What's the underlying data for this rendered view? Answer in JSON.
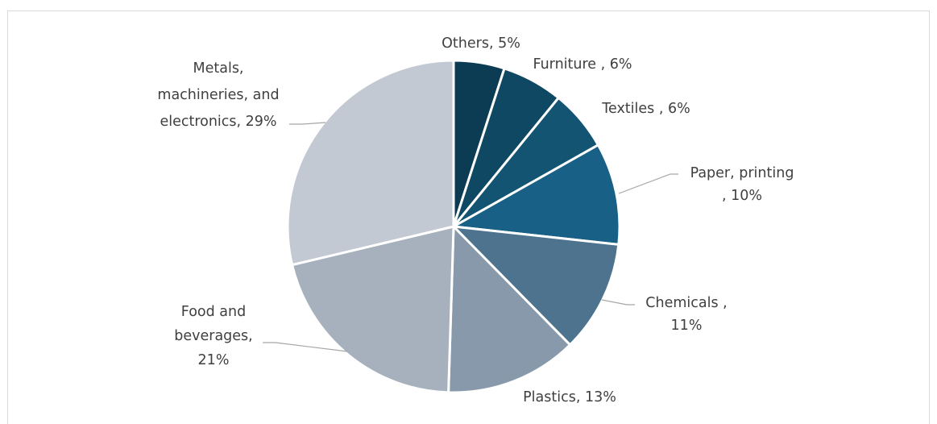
{
  "chart_data": {
    "type": "pie",
    "slices": [
      {
        "label_lines": [
          "Others, 5%"
        ],
        "value": 5,
        "color": "#0c3b54"
      },
      {
        "label_lines": [
          "Furniture , 6%"
        ],
        "value": 6,
        "color": "#0f4862"
      },
      {
        "label_lines": [
          "Textiles , 6%"
        ],
        "value": 6,
        "color": "#125471"
      },
      {
        "label_lines": [
          "Paper, printing",
          ", 10%"
        ],
        "value": 10,
        "color": "#186085"
      },
      {
        "label_lines": [
          "Chemicals ,",
          "11%"
        ],
        "value": 11,
        "color": "#4e738e"
      },
      {
        "label_lines": [
          "Plastics, 13%"
        ],
        "value": 13,
        "color": "#8799aa"
      },
      {
        "label_lines": [
          "Food and",
          "beverages,",
          "21%"
        ],
        "value": 21,
        "color": "#a6b1bd"
      },
      {
        "label_lines": [
          "Metals,",
          "machineries, and",
          "electronics, 29%"
        ],
        "value": 29,
        "color": "#c3c9d2"
      }
    ],
    "start_angle": "12 o'clock",
    "direction": "clockwise",
    "legend": "none"
  }
}
